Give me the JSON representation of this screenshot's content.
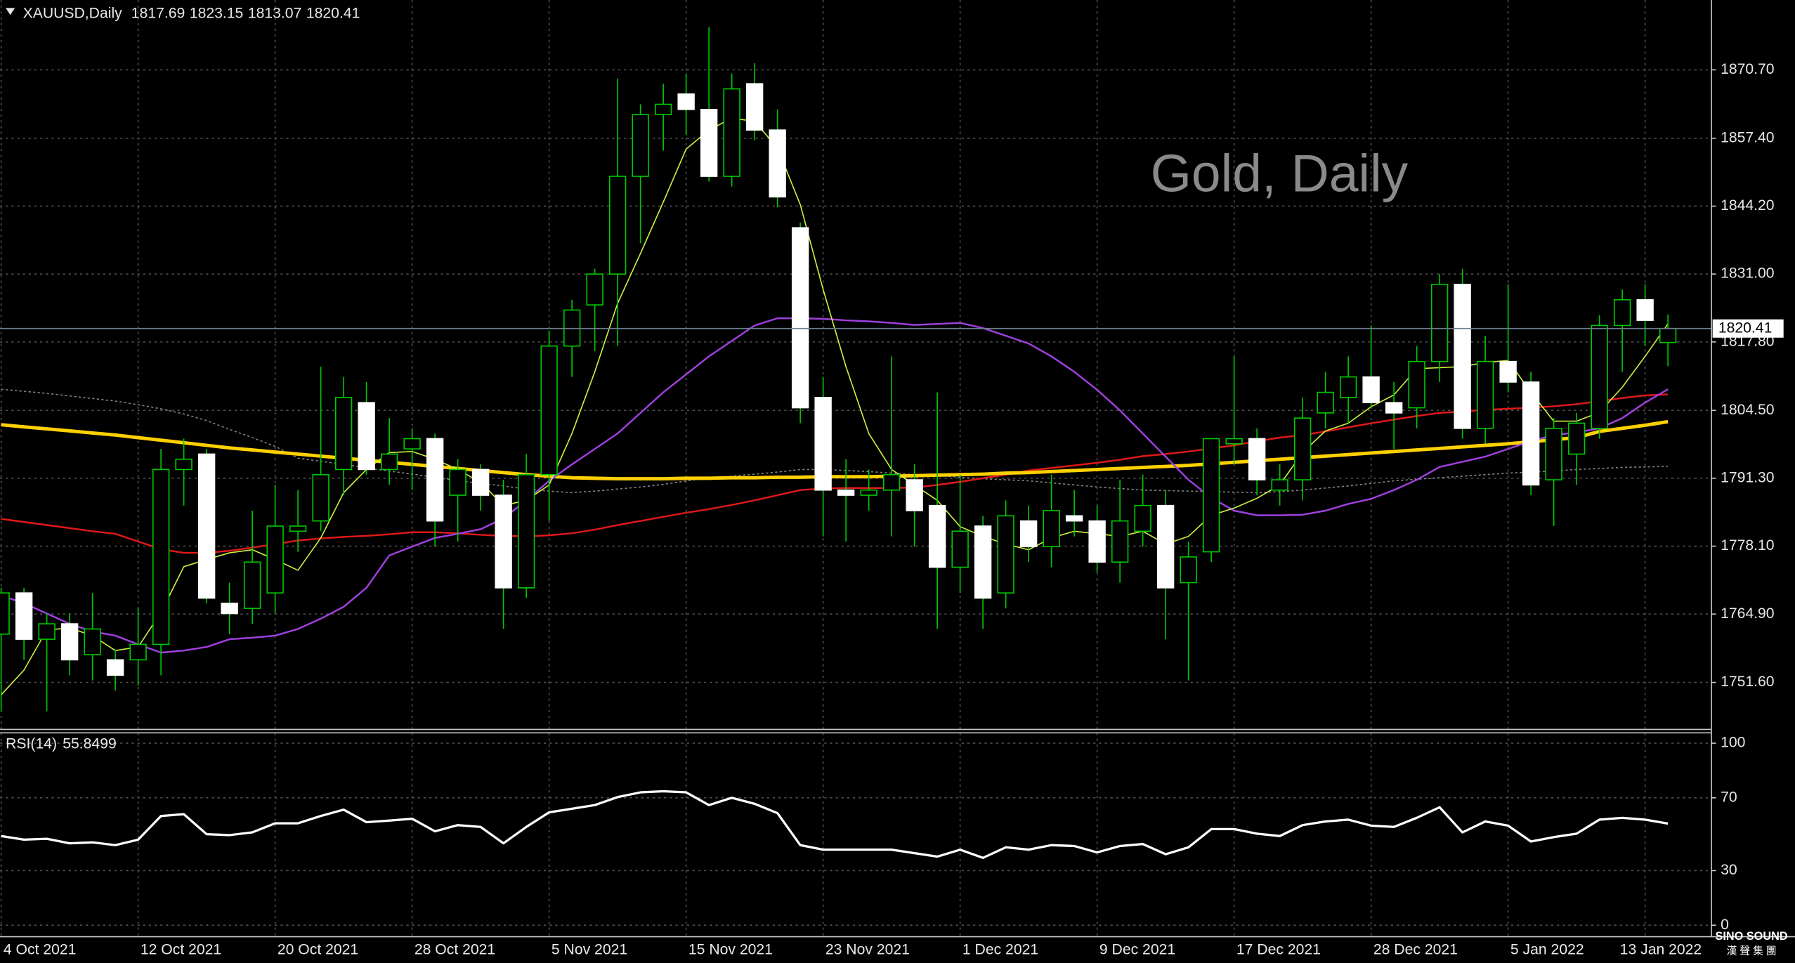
{
  "chart_data": [
    {
      "type": "candlestick",
      "title": "XAUUSD,Daily",
      "watermark": "Gold, Daily",
      "categories": [
        "4 Oct 2021",
        null,
        null,
        null,
        null,
        null,
        "12 Oct 2021",
        null,
        null,
        null,
        null,
        null,
        "20 Oct 2021",
        null,
        null,
        null,
        null,
        null,
        "28 Oct 2021",
        null,
        null,
        null,
        null,
        null,
        "5 Nov 2021",
        null,
        null,
        null,
        null,
        null,
        "15 Nov 2021",
        null,
        null,
        null,
        null,
        null,
        "23 Nov 2021",
        null,
        null,
        null,
        null,
        null,
        "1 Dec 2021",
        null,
        null,
        null,
        null,
        null,
        "9 Dec 2021",
        null,
        null,
        null,
        null,
        null,
        "17 Dec 2021",
        null,
        null,
        null,
        null,
        null,
        "28 Dec 2021",
        null,
        null,
        null,
        null,
        null,
        "5 Jan 2022",
        null,
        null,
        null,
        null,
        null,
        "13 Jan 2022",
        null
      ],
      "open": [
        1761,
        1769,
        1760,
        1763,
        1757,
        1756,
        1756,
        1759,
        1793,
        1796,
        1767,
        1766,
        1769,
        1781,
        1783,
        1793,
        1806,
        1793,
        1797,
        1799,
        1788,
        1793,
        1788,
        1770,
        1792,
        1817,
        1825,
        1831,
        1850,
        1862,
        1866,
        1863,
        1850,
        1868,
        1859,
        1840,
        1807,
        1789,
        1788,
        1789,
        1791,
        1786,
        1774,
        1782,
        1769,
        1783,
        1778,
        1784,
        1783,
        1775,
        1781,
        1786,
        1771,
        1777,
        1798,
        1799,
        1789,
        1791,
        1804,
        1807,
        1811,
        1806,
        1805,
        1814,
        1829,
        1801,
        1814,
        1810,
        1791,
        1796,
        1801,
        1821,
        1826,
        1817.69
      ],
      "high": [
        1770,
        1770,
        1765,
        1765,
        1769,
        1758,
        1766,
        1797,
        1799,
        1797,
        1771,
        1785,
        1790,
        1789,
        1813,
        1811,
        1810,
        1803,
        1801,
        1800,
        1795,
        1794,
        1791,
        1796,
        1820,
        1826,
        1832,
        1869,
        1864,
        1868,
        1870,
        1879,
        1870,
        1872,
        1863,
        1841,
        1811,
        1795,
        1793,
        1815,
        1794,
        1808,
        1792,
        1784,
        1787,
        1786,
        1792,
        1789,
        1786,
        1791,
        1792,
        1789,
        1779,
        1799,
        1815,
        1801,
        1794,
        1807,
        1812,
        1815,
        1821,
        1810,
        1817,
        1831,
        1832,
        1819,
        1829,
        1812,
        1803,
        1804,
        1823,
        1828,
        1829,
        1823.15
      ],
      "low": [
        1746,
        1756,
        1746,
        1753,
        1752,
        1750,
        1751,
        1753,
        1786,
        1767,
        1761,
        1763,
        1765,
        1777,
        1781,
        1788,
        1792,
        1790,
        1789,
        1778,
        1779,
        1785,
        1762,
        1768,
        1783,
        1811,
        1816,
        1817,
        1837,
        1855,
        1858,
        1849,
        1848,
        1857,
        1844,
        1802,
        1780,
        1779,
        1785,
        1780,
        1778,
        1762,
        1769,
        1762,
        1766,
        1775,
        1774,
        1780,
        1773,
        1771,
        1778,
        1760,
        1752,
        1775,
        1794,
        1788,
        1786,
        1787,
        1801,
        1802,
        1805,
        1797,
        1801,
        1810,
        1799,
        1798,
        1808,
        1788,
        1782,
        1790,
        1799,
        1812,
        1817,
        1813.07
      ],
      "close": [
        1769,
        1760,
        1763,
        1756,
        1762,
        1753,
        1759,
        1793,
        1795,
        1768,
        1765,
        1775,
        1782,
        1782,
        1792,
        1807,
        1793,
        1796,
        1799,
        1783,
        1793,
        1788,
        1770,
        1792,
        1817,
        1824,
        1831,
        1850,
        1862,
        1864,
        1863,
        1850,
        1867,
        1859,
        1846,
        1805,
        1789,
        1788,
        1789,
        1792,
        1785,
        1774,
        1781,
        1768,
        1784,
        1778,
        1785,
        1783,
        1775,
        1783,
        1786,
        1770,
        1776,
        1799,
        1799,
        1791,
        1791,
        1803,
        1808,
        1811,
        1806,
        1804,
        1814,
        1829,
        1801,
        1814,
        1810,
        1790,
        1801,
        1802,
        1821,
        1826,
        1822,
        1820.41
      ],
      "up_color": "#00c800",
      "down_color": "#ffffff",
      "overlays": [
        {
          "color": "#808080",
          "width": 1,
          "dashed": true,
          "values": [
            1808.6,
            1808.2,
            1807.8,
            1807.3,
            1806.8,
            1806.3,
            1805.6,
            1804.8,
            1803.8,
            1802.5,
            1800.8,
            1799.2,
            1797.5,
            1795.2,
            1794.6,
            1794.0,
            1793.3,
            1792.7,
            1792.1,
            1791.5,
            1790.8,
            1790.3,
            1789.8,
            1789.2,
            1788.8,
            1788.5,
            1788.8,
            1789.2,
            1789.6,
            1790.1,
            1790.8,
            1791.3,
            1791.7,
            1792.1,
            1792.5,
            1793.0,
            1793.0,
            1792.8,
            1792.6,
            1792.3,
            1792.0,
            1791.8,
            1791.5,
            1791.2,
            1791.0,
            1790.8,
            1790.4,
            1790.0,
            1789.6,
            1789.3,
            1789.0,
            1788.9,
            1788.8,
            1788.7,
            1788.6,
            1788.5,
            1788.7,
            1789.0,
            1789.4,
            1789.8,
            1790.3,
            1790.8,
            1791.1,
            1791.4,
            1791.7,
            1792.0,
            1792.3,
            1792.5,
            1792.7,
            1793.0,
            1793.2,
            1793.4,
            1793.5,
            1793.6
          ]
        },
        {
          "color": "#e01818",
          "width": 1.5,
          "dashed": false,
          "values": [
            1783.4,
            1782.8,
            1782.2,
            1781.6,
            1781,
            1780.5,
            1779,
            1777.5,
            1776.8,
            1776.8,
            1777.2,
            1777.8,
            1778.5,
            1779.2,
            1779.6,
            1779.9,
            1780.1,
            1780.4,
            1780.8,
            1780.8,
            1780.6,
            1780.3,
            1780.1,
            1780.0,
            1780.2,
            1780.6,
            1781.3,
            1782.2,
            1783.0,
            1783.8,
            1784.6,
            1785.3,
            1786.1,
            1787.0,
            1788.0,
            1789.0,
            1789.3,
            1789.4,
            1789.4,
            1789.4,
            1789.5,
            1790.0,
            1790.6,
            1791.3,
            1792.0,
            1792.8,
            1793.3,
            1793.8,
            1794.3,
            1794.9,
            1795.6,
            1796.0,
            1796.5,
            1797.1,
            1797.7,
            1798.5,
            1799.2,
            1799.7,
            1800.4,
            1801.2,
            1802.0,
            1802.7,
            1803.4,
            1804.0,
            1804.3,
            1804.6,
            1804.8,
            1805.0,
            1805.3,
            1805.7,
            1806.3,
            1806.9,
            1807.4,
            1807.6
          ]
        },
        {
          "color": "#ffd000",
          "width": 3,
          "dashed": false,
          "values": [
            1801.7,
            1801.3,
            1800.9,
            1800.5,
            1800.1,
            1799.7,
            1799.2,
            1798.7,
            1798.2,
            1797.7,
            1797.2,
            1796.8,
            1796.4,
            1796.0,
            1795.6,
            1795.2,
            1794.8,
            1794.4,
            1794.0,
            1793.6,
            1793.2,
            1792.8,
            1792.4,
            1792.0,
            1791.7,
            1791.4,
            1791.3,
            1791.2,
            1791.2,
            1791.2,
            1791.3,
            1791.3,
            1791.4,
            1791.4,
            1791.5,
            1791.5,
            1791.6,
            1791.6,
            1791.6,
            1791.7,
            1791.8,
            1791.9,
            1792.0,
            1792.1,
            1792.3,
            1792.4,
            1792.6,
            1792.8,
            1793.0,
            1793.2,
            1793.4,
            1793.6,
            1793.8,
            1794.1,
            1794.4,
            1794.7,
            1795.0,
            1795.3,
            1795.6,
            1795.9,
            1796.2,
            1796.5,
            1796.8,
            1797.1,
            1797.4,
            1797.7,
            1798.0,
            1798.4,
            1798.8,
            1799.2,
            1800.4,
            1801.0,
            1801.6,
            1802.3
          ]
        },
        {
          "color": "#a040e0",
          "width": 1.5,
          "dashed": false,
          "values": [
            1768.5,
            1767,
            1765,
            1763,
            1761.5,
            1760.7,
            1759,
            1757.4,
            1757.8,
            1758.5,
            1760,
            1760.3,
            1760.7,
            1762,
            1764,
            1766.3,
            1770,
            1776.3,
            1778,
            1779.7,
            1780.5,
            1781.4,
            1783.5,
            1787,
            1790.8,
            1794,
            1797,
            1800,
            1804,
            1808,
            1811.5,
            1815,
            1818,
            1821,
            1822.4,
            1822.4,
            1822.3,
            1822.0,
            1821.8,
            1821.5,
            1821.1,
            1821.3,
            1821.5,
            1820.5,
            1819,
            1817.5,
            1815,
            1812,
            1808.5,
            1804.5,
            1800,
            1795.5,
            1791,
            1787.5,
            1785,
            1784.1,
            1784.1,
            1784.2,
            1785,
            1786.3,
            1787.3,
            1789,
            1791,
            1793.5,
            1794.5,
            1795.5,
            1797,
            1798.5,
            1799.7,
            1800.2,
            1801,
            1803,
            1806,
            1808.6
          ]
        },
        {
          "color": "#c8f040",
          "width": 1,
          "dashed": false,
          "values": [
            1749.2,
            1754,
            1761.8,
            1762.2,
            1760.7,
            1757.8,
            1758.5,
            1765.2,
            1774.1,
            1775.5,
            1776.8,
            1777.4,
            1775.5,
            1773.4,
            1779.7,
            1788.5,
            1793,
            1796.3,
            1796.5,
            1795,
            1793,
            1790.5,
            1786,
            1787,
            1790,
            1800,
            1812,
            1825.3,
            1835,
            1845,
            1855.3,
            1859,
            1861.3,
            1860.7,
            1855.5,
            1844.5,
            1828,
            1813,
            1800,
            1793,
            1790,
            1787,
            1781.9,
            1780,
            1778.5,
            1777.4,
            1779.7,
            1781,
            1780.5,
            1780,
            1781,
            1778.5,
            1780,
            1784.1,
            1785.5,
            1787.4,
            1790,
            1796.3,
            1800.5,
            1802,
            1805.2,
            1807.5,
            1812.6,
            1812.8,
            1813,
            1813.8,
            1814.2,
            1808,
            1802.4,
            1802.4,
            1804.1,
            1809,
            1815,
            1821.3
          ]
        }
      ],
      "ylim": [
        1742.47,
        1884.28
      ],
      "yticks": [
        {
          "value": 1870.7,
          "label": "1870.70"
        },
        {
          "value": 1857.4,
          "label": "1857.40"
        },
        {
          "value": 1844.2,
          "label": "1844.20"
        },
        {
          "value": 1831.0,
          "label": "1831.00"
        },
        {
          "value": 1817.8,
          "label": "1817.80"
        },
        {
          "value": 1804.5,
          "label": "1804.50"
        },
        {
          "value": 1791.3,
          "label": "1791.30"
        },
        {
          "value": 1778.1,
          "label": "1778.10"
        },
        {
          "value": 1764.9,
          "label": "1764.90"
        },
        {
          "value": 1751.6,
          "label": "1751.60"
        }
      ],
      "grid": true
    },
    {
      "type": "line",
      "title": "RSI(14)",
      "color": "#ffffff",
      "values": [
        49,
        47,
        47.5,
        45,
        45.5,
        44,
        47,
        60,
        61,
        50,
        49.5,
        51,
        56,
        56,
        60,
        63.5,
        56.6,
        57.5,
        58.5,
        51.6,
        55,
        54,
        45,
        54,
        62,
        64,
        66,
        70.4,
        73,
        73.6,
        73,
        66,
        70,
        66.7,
        61.6,
        44,
        41.5,
        41.5,
        41.5,
        41.5,
        39.6,
        37.7,
        41.5,
        37,
        42.8,
        41.5,
        44,
        43.5,
        40,
        43.5,
        44.6,
        39,
        42.8,
        52.8,
        52.8,
        50.3,
        49,
        55,
        57,
        58,
        54.7,
        54,
        59,
        64.8,
        51,
        57,
        54.7,
        46,
        48.4,
        50.3,
        58,
        59,
        58,
        55.8499
      ],
      "ylim": [
        -6.3,
        105.7
      ],
      "yticks": [
        100,
        70,
        30,
        0
      ],
      "grid": true
    }
  ],
  "logo": {
    "text": "SINO SOUND",
    "subtext": "漢 聲 集 團"
  }
}
